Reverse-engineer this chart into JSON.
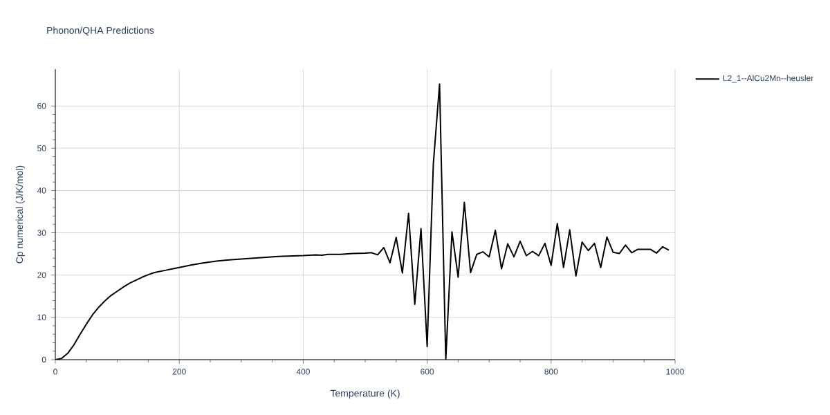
{
  "chart_data": {
    "type": "line",
    "title": "Phonon/QHA Predictions",
    "xlabel": "Temperature (K)",
    "ylabel": "Cp numerical (J/K/mol)",
    "x": [
      0,
      10,
      20,
      30,
      40,
      50,
      60,
      70,
      80,
      90,
      100,
      110,
      120,
      130,
      140,
      150,
      160,
      170,
      180,
      190,
      200,
      220,
      240,
      260,
      280,
      300,
      320,
      340,
      360,
      380,
      400,
      420,
      430,
      440,
      460,
      480,
      500,
      510,
      520,
      530,
      540,
      550,
      560,
      570,
      580,
      590,
      600,
      610,
      620,
      630,
      640,
      650,
      660,
      670,
      680,
      690,
      700,
      710,
      720,
      730,
      740,
      750,
      760,
      770,
      780,
      790,
      800,
      810,
      820,
      830,
      840,
      850,
      860,
      870,
      880,
      890,
      900,
      910,
      920,
      930,
      940,
      950,
      960,
      970,
      980,
      990
    ],
    "series": [
      {
        "name": "L2_1--AlCu2Mn--heusler",
        "color": "#000000",
        "values": [
          0,
          0.3,
          1.5,
          3.5,
          6.0,
          8.4,
          10.6,
          12.4,
          13.9,
          15.2,
          16.2,
          17.2,
          18.1,
          18.8,
          19.5,
          20.1,
          20.6,
          20.9,
          21.2,
          21.5,
          21.8,
          22.4,
          22.9,
          23.3,
          23.6,
          23.8,
          24.0,
          24.2,
          24.4,
          24.5,
          24.6,
          24.8,
          24.7,
          24.9,
          24.9,
          25.1,
          25.2,
          25.3,
          24.8,
          26.5,
          22.9,
          28.9,
          20.5,
          34.6,
          13.1,
          31.0,
          3.1,
          46.4,
          65.2,
          0,
          30.2,
          19.5,
          37.2,
          20.6,
          24.9,
          25.5,
          24.3,
          30.6,
          21.5,
          27.4,
          24.3,
          28.0,
          24.6,
          25.6,
          24.6,
          27.5,
          22.3,
          32.2,
          21.8,
          30.7,
          19.8,
          27.8,
          25.8,
          27.5,
          21.8,
          29.0,
          25.4,
          25.1,
          27.1,
          25.3,
          26.1,
          26.1,
          26.1,
          25.2,
          26.7,
          25.9
        ]
      }
    ],
    "xlim": [
      0,
      1000
    ],
    "ylim": [
      0,
      68.7
    ],
    "xticks": [
      0,
      200,
      400,
      600,
      800,
      1000
    ],
    "yticks": [
      0,
      10,
      20,
      30,
      40,
      50,
      60
    ],
    "grid": true,
    "legend": "top right"
  }
}
